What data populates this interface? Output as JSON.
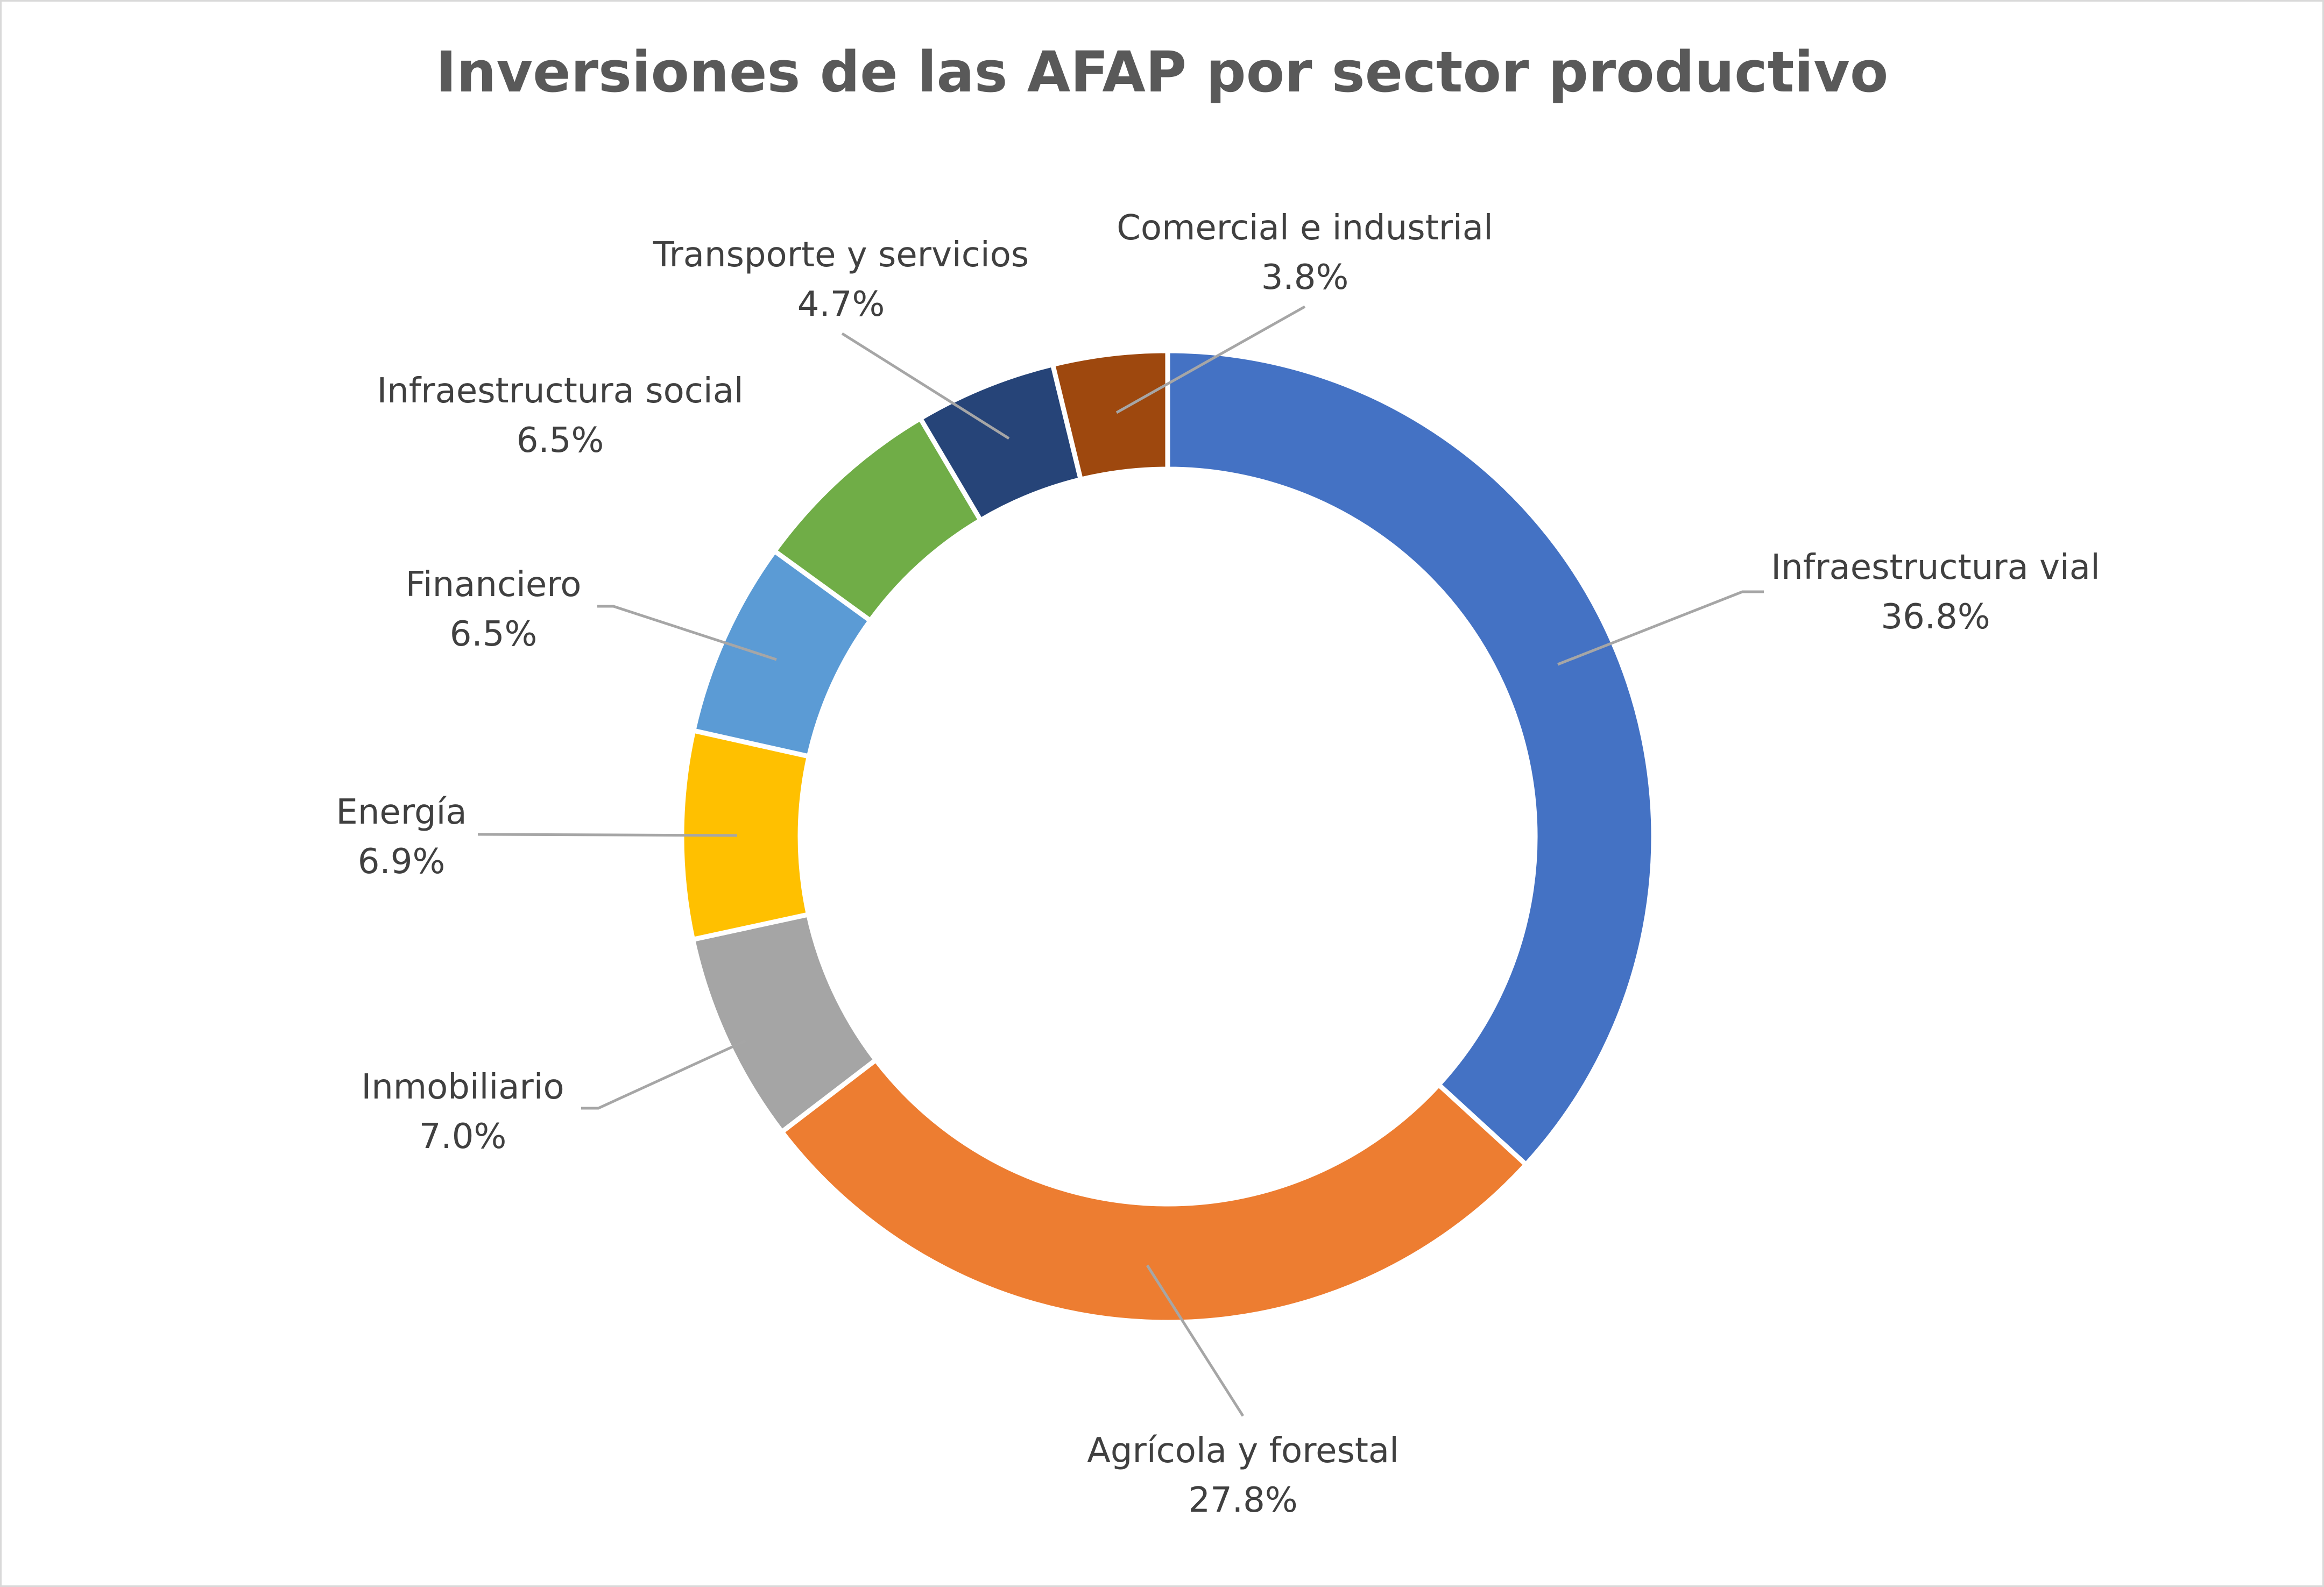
{
  "chart_data": {
    "type": "pie",
    "variant": "doughnut",
    "title": "Inversiones de las AFAP por sector productivo",
    "slices": [
      {
        "label": "Infraestructura vial",
        "value": 36.8,
        "display": "36.8%",
        "color": "#4472C4"
      },
      {
        "label": "Agrícola y forestal",
        "value": 27.8,
        "display": "27.8%",
        "color": "#ED7D31"
      },
      {
        "label": "Inmobiliario",
        "value": 7.0,
        "display": "7.0%",
        "color": "#A5A5A5"
      },
      {
        "label": "Energía",
        "value": 6.9,
        "display": "6.9%",
        "color": "#FFC000"
      },
      {
        "label": "Financiero",
        "value": 6.5,
        "display": "6.5%",
        "color": "#5B9BD5"
      },
      {
        "label": "Infraestructura social",
        "value": 6.5,
        "display": "6.5%",
        "color": "#70AD47"
      },
      {
        "label": "Transporte y servicios",
        "value": 4.7,
        "display": "4.7%",
        "color": "#264478"
      },
      {
        "label": "Comercial e industrial",
        "value": 3.8,
        "display": "3.8%",
        "color": "#9E480E"
      }
    ],
    "start_angle": "12 o'clock",
    "direction": "clockwise",
    "legend": "none",
    "data_labels": "outside with leader lines"
  }
}
